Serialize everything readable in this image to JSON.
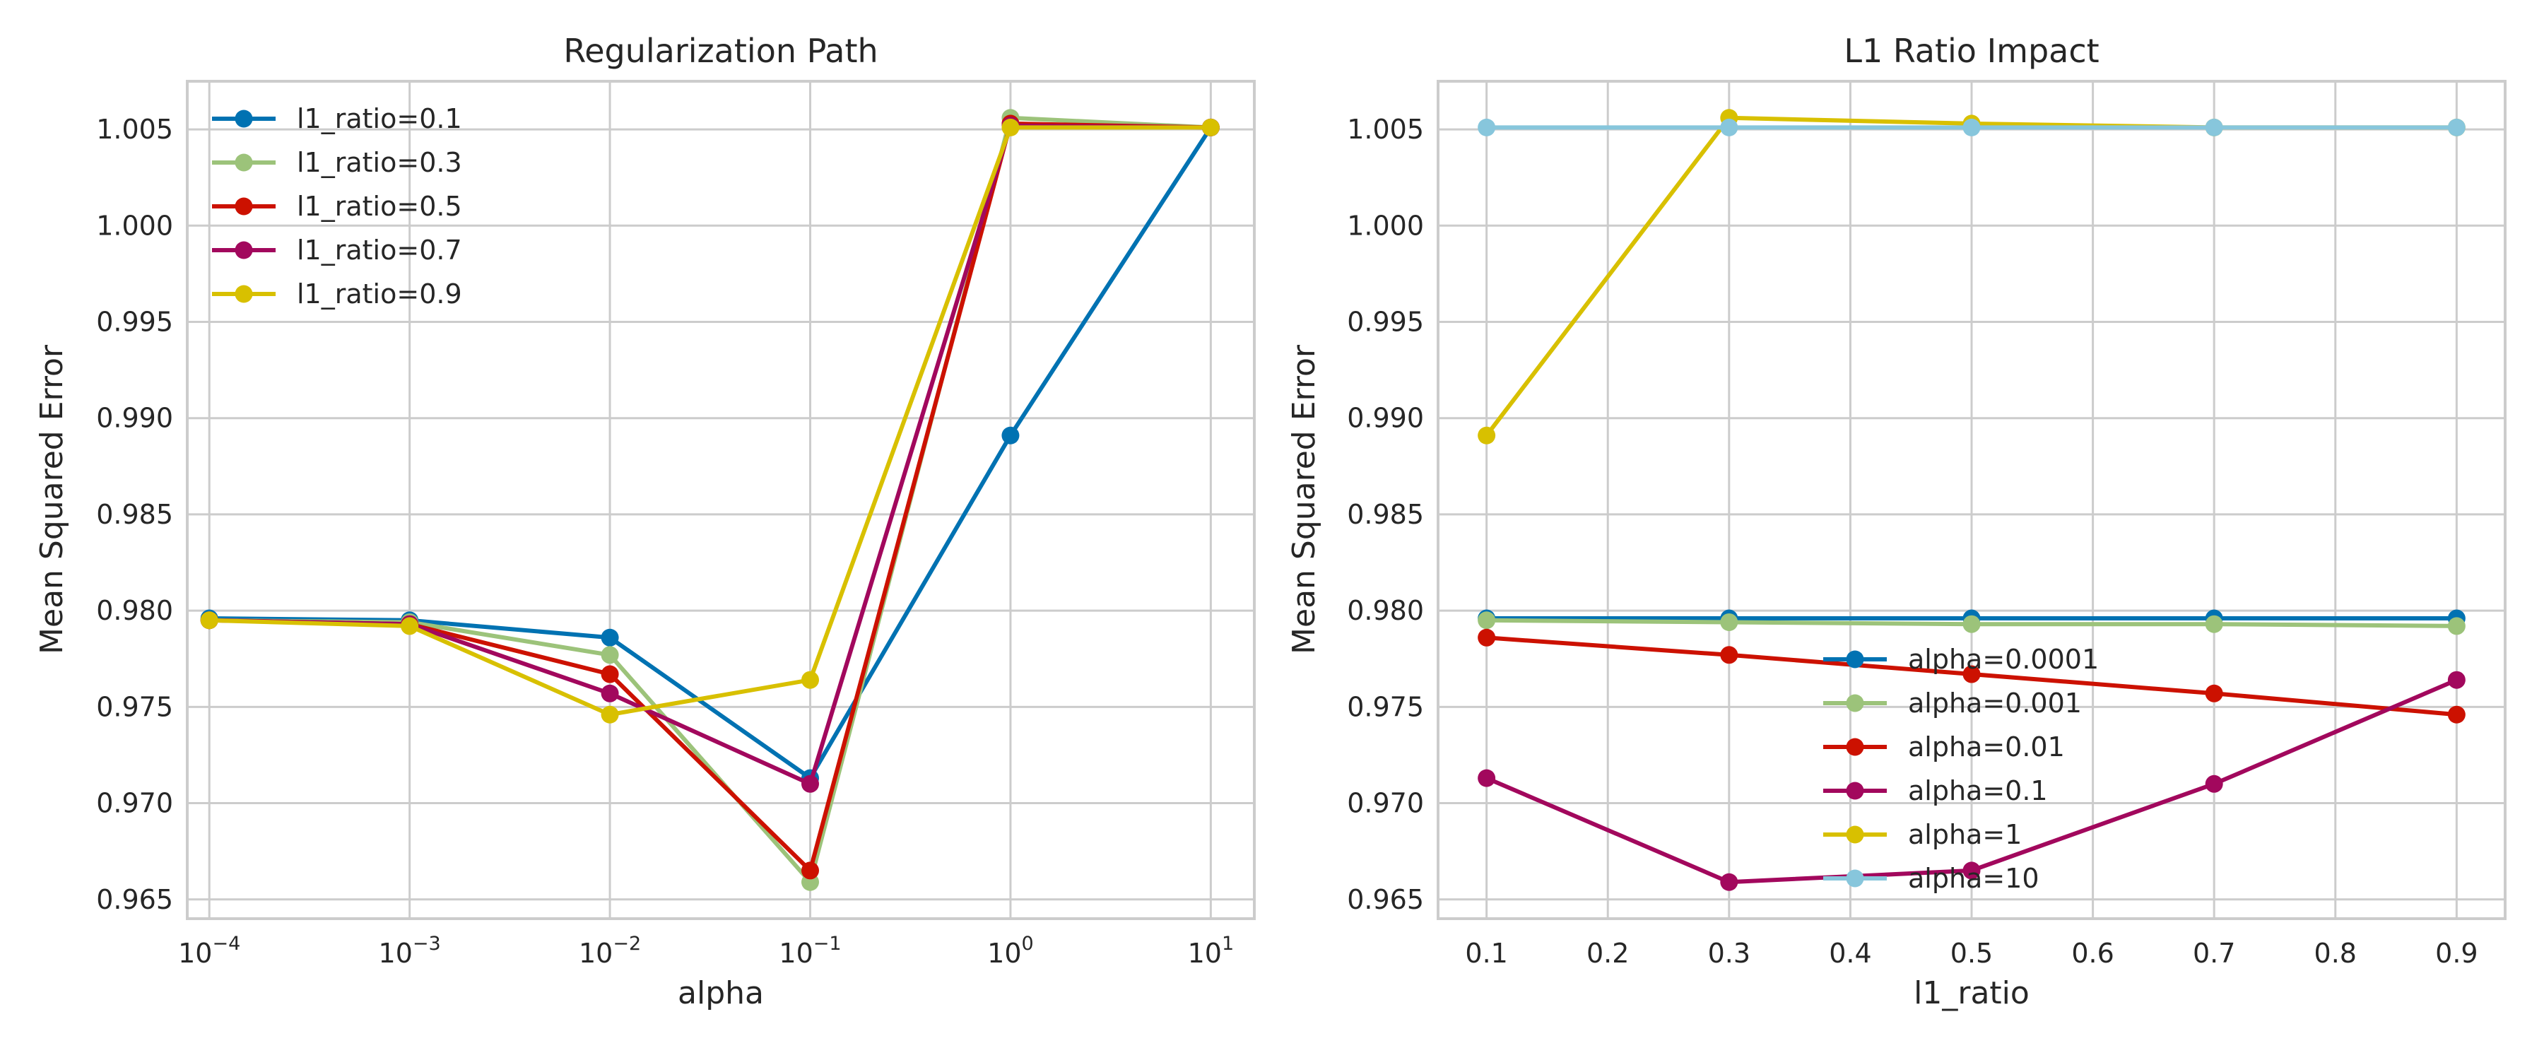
{
  "chart_data": [
    {
      "type": "line",
      "title": "Regularization Path",
      "xlabel": "alpha",
      "ylabel": "Mean Squared Error",
      "xscale": "log",
      "x": [
        0.0001,
        0.001,
        0.01,
        0.1,
        1,
        10
      ],
      "xticks": [
        {
          "value": 0.0001,
          "base": "10",
          "exp": "−4"
        },
        {
          "value": 0.001,
          "base": "10",
          "exp": "−3"
        },
        {
          "value": 0.01,
          "base": "10",
          "exp": "−2"
        },
        {
          "value": 0.1,
          "base": "10",
          "exp": "−1"
        },
        {
          "value": 1,
          "base": "10",
          "exp": "0"
        },
        {
          "value": 10,
          "base": "10",
          "exp": "1"
        }
      ],
      "xlim": [
        7.76e-05,
        16.5
      ],
      "ylim": [
        0.964,
        1.0075
      ],
      "yticks": [
        "0.965",
        "0.970",
        "0.975",
        "0.980",
        "0.985",
        "0.990",
        "0.995",
        "1.000",
        "1.005"
      ],
      "grid": true,
      "legend_position": "top-left",
      "series": [
        {
          "name": "l1_ratio=0.1",
          "color": "#0072B2",
          "values": [
            0.9796,
            0.9795,
            0.9786,
            0.9713,
            0.9891,
            1.0051
          ]
        },
        {
          "name": "l1_ratio=0.3",
          "color": "#9CC37A",
          "values": [
            0.9795,
            0.9794,
            0.9777,
            0.9659,
            1.0056,
            1.0051
          ]
        },
        {
          "name": "l1_ratio=0.5",
          "color": "#CC1100",
          "values": [
            0.9795,
            0.9793,
            0.9767,
            0.9665,
            1.0053,
            1.0051
          ]
        },
        {
          "name": "l1_ratio=0.7",
          "color": "#A2085D",
          "values": [
            0.9795,
            0.9793,
            0.9757,
            0.971,
            1.0052,
            1.0051
          ]
        },
        {
          "name": "l1_ratio=0.9",
          "color": "#D8C000",
          "values": [
            0.9795,
            0.9792,
            0.9746,
            0.9764,
            1.0051,
            1.0051
          ]
        }
      ]
    },
    {
      "type": "line",
      "title": "L1 Ratio Impact",
      "xlabel": "l1_ratio",
      "ylabel": "Mean Squared Error",
      "x": [
        0.1,
        0.3,
        0.5,
        0.7,
        0.9
      ],
      "xticks": [
        "0.1",
        "0.2",
        "0.3",
        "0.4",
        "0.5",
        "0.6",
        "0.7",
        "0.8",
        "0.9"
      ],
      "xlim": [
        0.06,
        0.94
      ],
      "ylim": [
        0.964,
        1.0075
      ],
      "yticks": [
        "0.965",
        "0.970",
        "0.975",
        "0.980",
        "0.985",
        "0.990",
        "0.995",
        "1.000",
        "1.005"
      ],
      "grid": true,
      "legend_position": "lower-center",
      "series": [
        {
          "name": "alpha=0.0001",
          "color": "#0072B2",
          "values": [
            0.9796,
            0.9796,
            0.9796,
            0.9796,
            0.9796
          ]
        },
        {
          "name": "alpha=0.001",
          "color": "#9CC37A",
          "values": [
            0.9795,
            0.9794,
            0.9793,
            0.9793,
            0.9792
          ]
        },
        {
          "name": "alpha=0.01",
          "color": "#CC1100",
          "values": [
            0.9786,
            0.9777,
            0.9767,
            0.9757,
            0.9746
          ]
        },
        {
          "name": "alpha=0.1",
          "color": "#A2085D",
          "values": [
            0.9713,
            0.9659,
            0.9665,
            0.971,
            0.9764
          ]
        },
        {
          "name": "alpha=1",
          "color": "#D8C000",
          "values": [
            0.9891,
            1.0056,
            1.0053,
            1.0051,
            1.0051
          ]
        },
        {
          "name": "alpha=10",
          "color": "#87C6DC",
          "values": [
            1.0051,
            1.0051,
            1.0051,
            1.0051,
            1.0051
          ]
        }
      ]
    }
  ]
}
